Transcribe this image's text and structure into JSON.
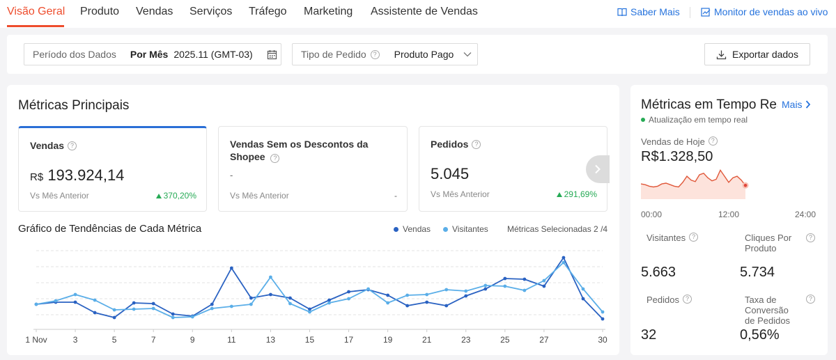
{
  "nav": {
    "tabs": [
      "Visão Geral",
      "Produto",
      "Vendas",
      "Serviços",
      "Tráfego",
      "Marketing",
      "Assistente de Vendas"
    ],
    "learn_more": "Saber Mais",
    "live_monitor": "Monitor de vendas ao vivo",
    "colors": {
      "active": "#ee4d2d",
      "link": "#2673dd"
    }
  },
  "filters": {
    "period_label": "Período dos Dados",
    "period_mode": "Por Mês",
    "period_value": "2025.11 (GMT-03)",
    "order_type_label": "Tipo de Pedido",
    "order_type_value": "Produto Pago",
    "export_label": "Exportar dados"
  },
  "main_metrics": {
    "title": "Métricas Principais",
    "cards": [
      {
        "title": "Vendas",
        "currency": "R$",
        "value": "193.924,14",
        "compare": "Vs Mês Anterior",
        "change": "370,20%"
      },
      {
        "title": "Vendas Sem os Descontos da Shopee",
        "value": "-",
        "compare": "Vs Mês Anterior",
        "change": "-"
      },
      {
        "title": "Pedidos",
        "value": "5.045",
        "compare": "Vs Mês Anterior",
        "change": "291,69%"
      }
    ],
    "trend": {
      "title": "Gráfico de Tendências de Cada Métrica",
      "legend": [
        "Vendas",
        "Visitantes"
      ],
      "selected": "Métricas Selecionadas 2 /4"
    }
  },
  "chart_data": {
    "type": "line",
    "x": [
      1,
      2,
      3,
      4,
      5,
      6,
      7,
      8,
      9,
      10,
      11,
      12,
      13,
      14,
      15,
      16,
      17,
      18,
      19,
      20,
      21,
      22,
      23,
      24,
      25,
      26,
      27,
      28,
      29,
      30
    ],
    "x_tick_labels": [
      "1 Nov",
      "3",
      "5",
      "7",
      "9",
      "11",
      "13",
      "15",
      "17",
      "19",
      "21",
      "23",
      "25",
      "27",
      "30"
    ],
    "series": [
      {
        "name": "Vendas",
        "color": "#2a62c2",
        "values": [
          30,
          33,
          33,
          18,
          11,
          32,
          31,
          16,
          13,
          30,
          82,
          39,
          44,
          39,
          23,
          36,
          48,
          51,
          43,
          28,
          33,
          28,
          42,
          52,
          67,
          66,
          56,
          97,
          38,
          9
        ]
      },
      {
        "name": "Visitantes",
        "color": "#5aaee8",
        "values": [
          30,
          35,
          44,
          36,
          22,
          23,
          24,
          11,
          12,
          24,
          27,
          30,
          69,
          31,
          19,
          32,
          38,
          52,
          32,
          43,
          44,
          51,
          49,
          57,
          56,
          50,
          64,
          90,
          52,
          19
        ]
      }
    ],
    "ylim": [
      0,
      110
    ],
    "grid": true
  },
  "realtime": {
    "title": "Métricas em Tempo Real",
    "more": "Mais",
    "update": "Atualização em tempo real",
    "today_sales_label": "Vendas de Hoje",
    "today_sales_value": "R$1.328,50",
    "axis": [
      "00:00",
      "12:00",
      "24:00"
    ],
    "spark_values": [
      20,
      19,
      17,
      16,
      17,
      20,
      21,
      19,
      17,
      16,
      22,
      30,
      25,
      23,
      32,
      34,
      28,
      24,
      26,
      38,
      30,
      22,
      28,
      30,
      25,
      18
    ],
    "metrics": [
      {
        "label": "Visitantes",
        "value": "5.663"
      },
      {
        "label": "Cliques Por Produto",
        "value": "5.734"
      },
      {
        "label": "Pedidos",
        "value": "32"
      },
      {
        "label": "Taxa de Conversão de Pedidos",
        "value": "0,56%"
      }
    ]
  }
}
